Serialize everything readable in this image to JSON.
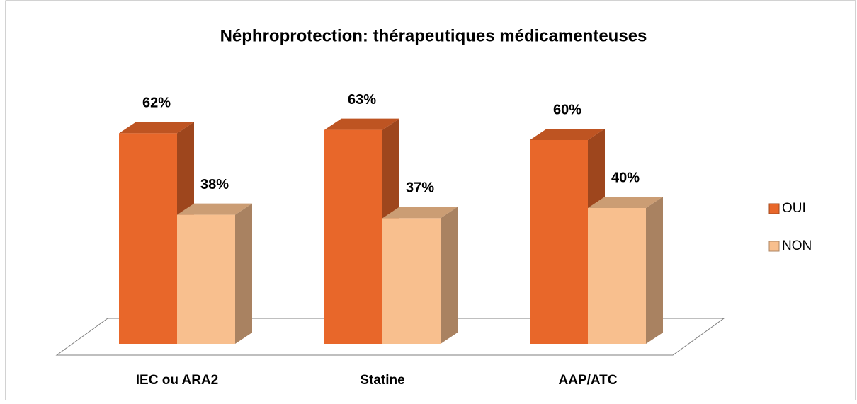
{
  "chart_data": {
    "type": "bar3d",
    "title": "Néphroprotection: thérapeutiques médicamenteuses",
    "categories": [
      "IEC ou ARA2",
      "Statine",
      "AAP/ATC"
    ],
    "series": [
      {
        "name": "OUI",
        "color": "#e8672a",
        "values": [
          62,
          63,
          60
        ],
        "value_labels": [
          "62%",
          "63%",
          "60%"
        ]
      },
      {
        "name": "NON",
        "color": "#f8bf8e",
        "values": [
          38,
          37,
          40
        ],
        "value_labels": [
          "38%",
          "37%",
          "40%"
        ]
      }
    ],
    "legend": "right"
  }
}
